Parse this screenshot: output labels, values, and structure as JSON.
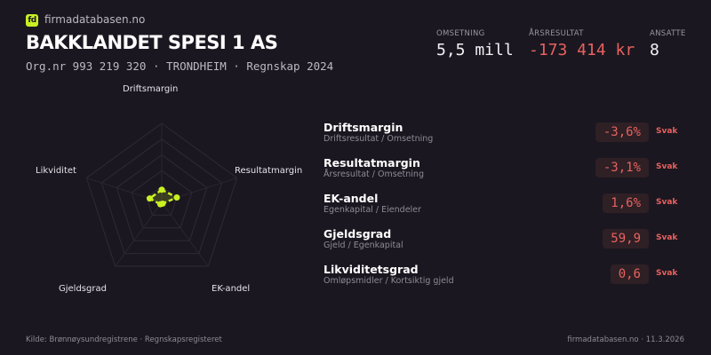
{
  "brand": {
    "logo_text": "fd",
    "site": "firmadatabasen.no",
    "accent": "#c8f023"
  },
  "company": {
    "name": "BAKKLANDET SPESI 1 AS",
    "subtitle": "Org.nr 993 219 320  ·  TRONDHEIM  ·  Regnskap 2024"
  },
  "stats": [
    {
      "label": "OMSETNING",
      "value": "5,5 mill"
    },
    {
      "label": "ÅRSRESULTAT",
      "value": "-173 414 kr",
      "color": "#e8615f"
    },
    {
      "label": "ANSATTE",
      "value": "8"
    }
  ],
  "radar": {
    "axes": [
      "Driftsmargin",
      "Resultatmargin",
      "EK-andel",
      "Gjeldsgrad",
      "Likviditet"
    ],
    "scores": [
      0.16,
      0.2,
      0.02,
      0.03,
      0.16
    ],
    "rings": 5
  },
  "metrics": [
    {
      "name": "Driftsmargin",
      "desc": "Driftsresultat / Omsetning",
      "value": "-3,6%",
      "rating": "Svak"
    },
    {
      "name": "Resultatmargin",
      "desc": "Årsresultat / Omsetning",
      "value": "-3,1%",
      "rating": "Svak"
    },
    {
      "name": "EK-andel",
      "desc": "Egenkapital / Eiendeler",
      "value": "1,6%",
      "rating": "Svak"
    },
    {
      "name": "Gjeldsgrad",
      "desc": "Gjeld / Egenkapital",
      "value": "59,9",
      "rating": "Svak"
    },
    {
      "name": "Likviditetsgrad",
      "desc": "Omløpsmidler / Kortsiktig gjeld",
      "value": "0,6",
      "rating": "Svak"
    }
  ],
  "footer": {
    "source": "Kilde: Brønnøysundregistrene · Regnskapsregisteret",
    "right": "firmadatabasen.no · 11.3.2026"
  }
}
